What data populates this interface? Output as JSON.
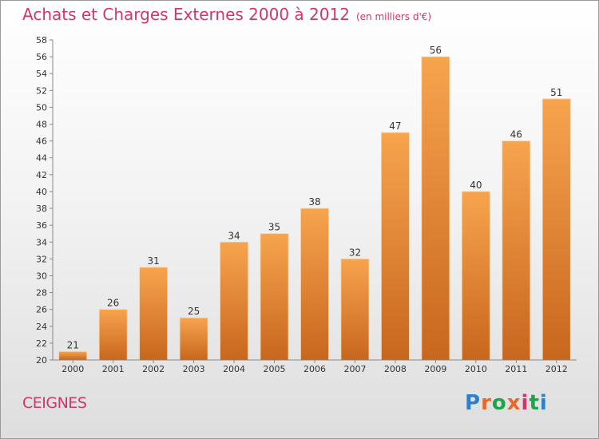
{
  "header": {
    "title": "Achats et Charges Externes 2000 à 2012",
    "unit": "(en milliers d'€)"
  },
  "footer": {
    "town": "CEIGNES",
    "brand": "Proxiti",
    "brand_colors": [
      "#2e7fc9",
      "#e8682a",
      "#1aa64a",
      "#e8682a",
      "#d2356b",
      "#1aa64a",
      "#2e7fc9"
    ]
  },
  "colors": {
    "title": "#d2356b",
    "bar_light": "#f7a44e",
    "bar_dark": "#c8661e"
  },
  "chart_data": {
    "type": "bar",
    "categories": [
      "2000",
      "2001",
      "2002",
      "2003",
      "2004",
      "2005",
      "2006",
      "2007",
      "2008",
      "2009",
      "2010",
      "2011",
      "2012"
    ],
    "values": [
      21,
      26,
      31,
      25,
      34,
      35,
      38,
      32,
      47,
      56,
      40,
      46,
      51
    ],
    "ylim": [
      20,
      58
    ],
    "yticks": [
      20,
      22,
      24,
      26,
      28,
      30,
      32,
      34,
      36,
      38,
      40,
      42,
      44,
      46,
      48,
      50,
      52,
      54,
      56,
      58
    ],
    "grid": false,
    "data_labels": true
  }
}
